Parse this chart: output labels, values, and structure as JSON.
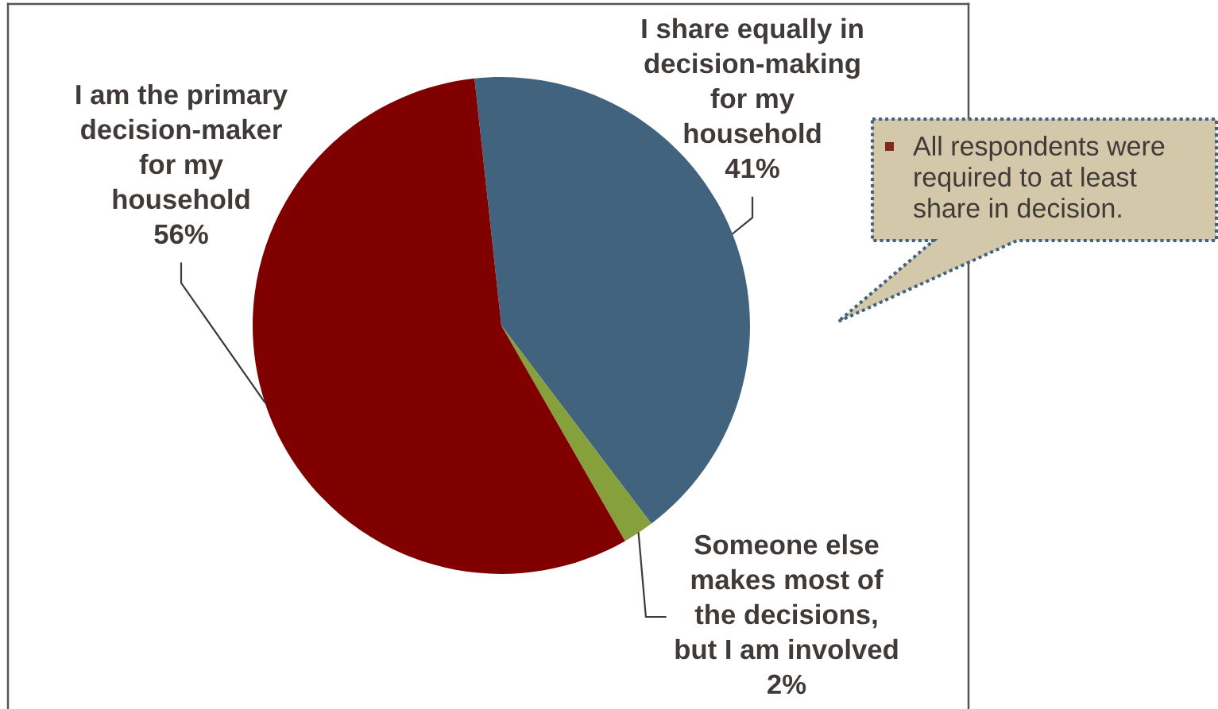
{
  "chart_data": {
    "type": "pie",
    "categories": [
      "I share equally in\ndecision-making\nfor my\nhousehold",
      "Someone else\nmakes most of\nthe decisions,\nbut I am involved",
      "I am the primary\ndecision-maker\nfor my\nhousehold"
    ],
    "values": [
      41,
      2,
      56
    ],
    "colors": [
      "#41637e",
      "#86a03c",
      "#800000"
    ],
    "value_labels": [
      "41%",
      "2%",
      "56%"
    ],
    "annotations": [
      "All respondents were\nrequired to at least\nshare in decision."
    ]
  }
}
